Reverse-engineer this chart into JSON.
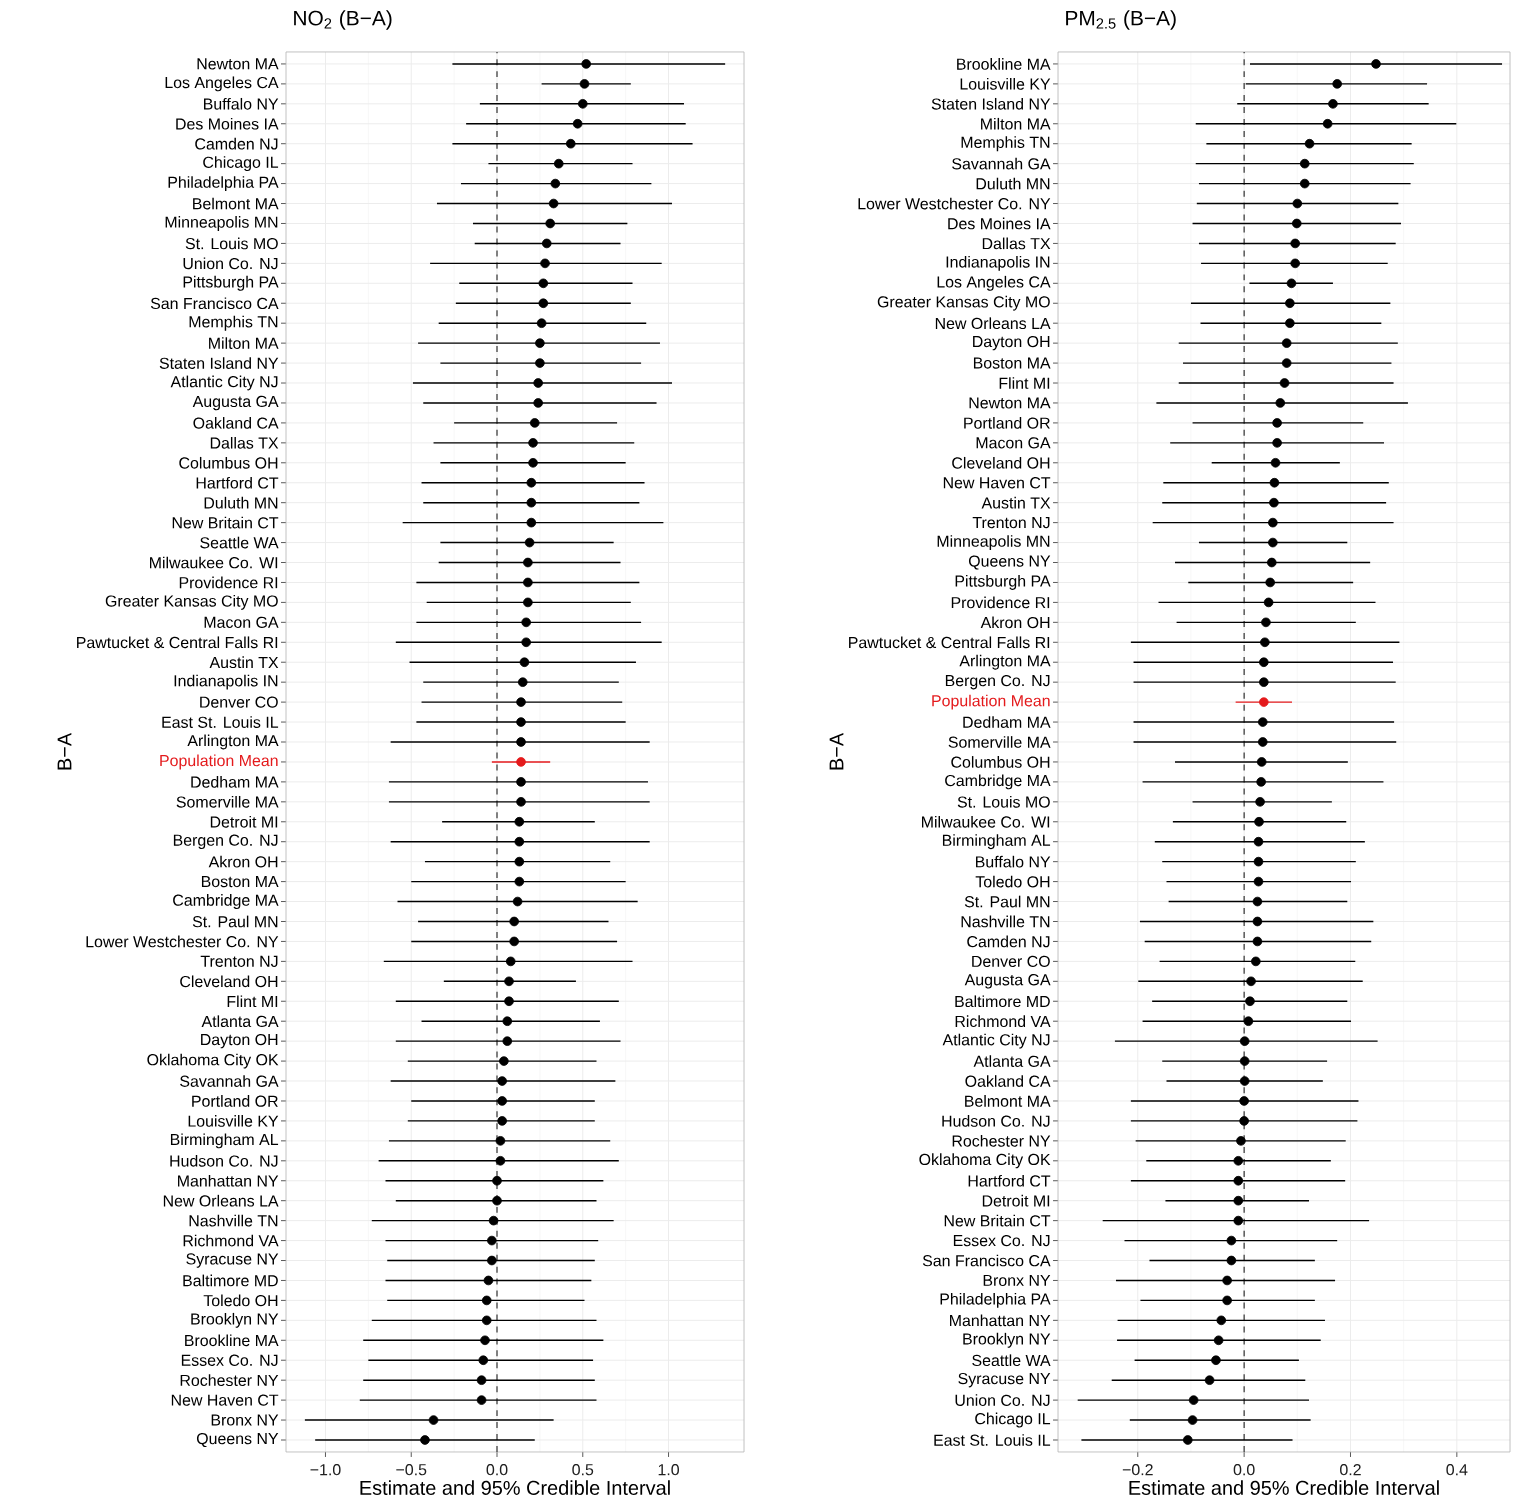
{
  "chart_data": [
    {
      "type": "scatter",
      "orientation": "horizontal",
      "title": "NO$_{2}$ (B−A)",
      "xlabel": "Estimate and 95% Credible Interval",
      "ylabel": "B−A",
      "marker": "circle",
      "grid": true,
      "xlim": [
        -1.23,
        1.44
      ],
      "xticks": [
        {
          "value": -1,
          "label": "−1.0"
        },
        {
          "value": -0.5,
          "label": "−0.5"
        },
        {
          "value": 0,
          "label": "0.0"
        },
        {
          "value": 0.5,
          "label": "0.5"
        },
        {
          "value": 1,
          "label": "1.0"
        }
      ],
      "ref_lines": [
        {
          "axis": "x",
          "value": 0,
          "color": "#333333",
          "line_style": "dashed"
        }
      ],
      "categories": [
        "Newton MA",
        "Los Angeles CA",
        "Buffalo NY",
        "Des Moines IA",
        "Camden NJ",
        "Chicago IL",
        "Philadelphia PA",
        "Belmont MA",
        "Minneapolis MN",
        "St. Louis MO",
        "Union Co. NJ",
        "Pittsburgh PA",
        "San Francisco CA",
        "Memphis TN",
        "Milton MA",
        "Staten Island NY",
        "Atlantic City NJ",
        "Augusta GA",
        "Oakland CA",
        "Dallas TX",
        "Columbus OH",
        "Hartford CT",
        "Duluth MN",
        "New Britain CT",
        "Seattle WA",
        "Milwaukee Co. WI",
        "Providence RI",
        "Greater Kansas City MO",
        "Macon GA",
        "Pawtucket & Central Falls RI",
        "Austin TX",
        "Indianapolis IN",
        "Denver CO",
        "East St. Louis IL",
        "Arlington MA",
        "Population Mean",
        "Dedham MA",
        "Somerville MA",
        "Detroit MI",
        "Bergen Co. NJ",
        "Akron OH",
        "Boston MA",
        "Cambridge MA",
        "St. Paul MN",
        "Lower Westchester Co. NY",
        "Trenton NJ",
        "Cleveland OH",
        "Flint MI",
        "Atlanta GA",
        "Dayton OH",
        "Oklahoma City OK",
        "Savannah GA",
        "Portland OR",
        "Louisville KY",
        "Birmingham AL",
        "Hudson Co. NJ",
        "Manhattan NY",
        "New Orleans LA",
        "Nashville TN",
        "Richmond VA",
        "Syracuse NY",
        "Baltimore MD",
        "Toledo OH",
        "Brooklyn NY",
        "Brookline MA",
        "Essex Co. NJ",
        "Rochester NY",
        "New Haven CT",
        "Bronx NY",
        "Queens NY"
      ],
      "values": [
        0.52,
        0.51,
        0.5,
        0.47,
        0.43,
        0.36,
        0.34,
        0.33,
        0.31,
        0.29,
        0.28,
        0.27,
        0.27,
        0.26,
        0.25,
        0.25,
        0.24,
        0.24,
        0.22,
        0.21,
        0.21,
        0.2,
        0.2,
        0.2,
        0.19,
        0.18,
        0.18,
        0.18,
        0.17,
        0.17,
        0.16,
        0.15,
        0.14,
        0.14,
        0.14,
        0.14,
        0.14,
        0.14,
        0.13,
        0.13,
        0.13,
        0.13,
        0.12,
        0.1,
        0.1,
        0.08,
        0.07,
        0.07,
        0.06,
        0.06,
        0.04,
        0.03,
        0.03,
        0.03,
        0.02,
        0.02,
        0.0,
        0.0,
        -0.02,
        -0.03,
        -0.03,
        -0.05,
        -0.06,
        -0.06,
        -0.07,
        -0.08,
        -0.09,
        -0.09,
        -0.37,
        -0.42
      ],
      "errors": [
        [
          -0.26,
          1.33
        ],
        [
          0.26,
          0.78
        ],
        [
          -0.1,
          1.09
        ],
        [
          -0.18,
          1.1
        ],
        [
          -0.26,
          1.14
        ],
        [
          -0.05,
          0.79
        ],
        [
          -0.21,
          0.9
        ],
        [
          -0.35,
          1.02
        ],
        [
          -0.14,
          0.76
        ],
        [
          -0.13,
          0.72
        ],
        [
          -0.39,
          0.96
        ],
        [
          -0.22,
          0.79
        ],
        [
          -0.24,
          0.78
        ],
        [
          -0.34,
          0.87
        ],
        [
          -0.46,
          0.95
        ],
        [
          -0.33,
          0.84
        ],
        [
          -0.49,
          1.02
        ],
        [
          -0.43,
          0.93
        ],
        [
          -0.25,
          0.7
        ],
        [
          -0.37,
          0.8
        ],
        [
          -0.33,
          0.75
        ],
        [
          -0.44,
          0.86
        ],
        [
          -0.43,
          0.83
        ],
        [
          -0.55,
          0.97
        ],
        [
          -0.33,
          0.68
        ],
        [
          -0.34,
          0.72
        ],
        [
          -0.47,
          0.83
        ],
        [
          -0.41,
          0.78
        ],
        [
          -0.47,
          0.84
        ],
        [
          -0.59,
          0.96
        ],
        [
          -0.51,
          0.81
        ],
        [
          -0.43,
          0.71
        ],
        [
          -0.44,
          0.73
        ],
        [
          -0.47,
          0.75
        ],
        [
          -0.62,
          0.89
        ],
        [
          -0.03,
          0.31
        ],
        [
          -0.63,
          0.88
        ],
        [
          -0.63,
          0.89
        ],
        [
          -0.32,
          0.57
        ],
        [
          -0.62,
          0.89
        ],
        [
          -0.42,
          0.66
        ],
        [
          -0.5,
          0.75
        ],
        [
          -0.58,
          0.82
        ],
        [
          -0.46,
          0.65
        ],
        [
          -0.5,
          0.7
        ],
        [
          -0.66,
          0.79
        ],
        [
          -0.31,
          0.46
        ],
        [
          -0.59,
          0.71
        ],
        [
          -0.44,
          0.6
        ],
        [
          -0.59,
          0.72
        ],
        [
          -0.52,
          0.58
        ],
        [
          -0.62,
          0.69
        ],
        [
          -0.5,
          0.57
        ],
        [
          -0.52,
          0.57
        ],
        [
          -0.63,
          0.66
        ],
        [
          -0.69,
          0.71
        ],
        [
          -0.65,
          0.62
        ],
        [
          -0.59,
          0.58
        ],
        [
          -0.73,
          0.68
        ],
        [
          -0.65,
          0.59
        ],
        [
          -0.64,
          0.57
        ],
        [
          -0.65,
          0.55
        ],
        [
          -0.64,
          0.51
        ],
        [
          -0.73,
          0.58
        ],
        [
          -0.78,
          0.62
        ],
        [
          -0.75,
          0.56
        ],
        [
          -0.78,
          0.57
        ],
        [
          -0.8,
          0.58
        ],
        [
          -1.12,
          0.33
        ],
        [
          -1.06,
          0.22
        ]
      ],
      "colors": [
        "#000000",
        "#000000",
        "#000000",
        "#000000",
        "#000000",
        "#000000",
        "#000000",
        "#000000",
        "#000000",
        "#000000",
        "#000000",
        "#000000",
        "#000000",
        "#000000",
        "#000000",
        "#000000",
        "#000000",
        "#000000",
        "#000000",
        "#000000",
        "#000000",
        "#000000",
        "#000000",
        "#000000",
        "#000000",
        "#000000",
        "#000000",
        "#000000",
        "#000000",
        "#000000",
        "#000000",
        "#000000",
        "#000000",
        "#000000",
        "#000000",
        "#e41a1c",
        "#000000",
        "#000000",
        "#000000",
        "#000000",
        "#000000",
        "#000000",
        "#000000",
        "#000000",
        "#000000",
        "#000000",
        "#000000",
        "#000000",
        "#000000",
        "#000000",
        "#000000",
        "#000000",
        "#000000",
        "#000000",
        "#000000",
        "#000000",
        "#000000",
        "#000000",
        "#000000",
        "#000000",
        "#000000",
        "#000000",
        "#000000",
        "#000000",
        "#000000",
        "#000000",
        "#000000",
        "#000000",
        "#000000",
        "#000000"
      ]
    },
    {
      "type": "scatter",
      "orientation": "horizontal",
      "title": "PM$_{2.5}$ (B−A)",
      "xlabel": "Estimate and 95% Credible Interval",
      "ylabel": "B−A",
      "marker": "circle",
      "grid": true,
      "xlim": [
        -0.35,
        0.5
      ],
      "xticks": [
        {
          "value": -0.2,
          "label": "−0.2"
        },
        {
          "value": 0,
          "label": "0.0"
        },
        {
          "value": 0.2,
          "label": "0.2"
        },
        {
          "value": 0.4,
          "label": "0.4"
        }
      ],
      "ref_lines": [
        {
          "axis": "x",
          "value": 0,
          "color": "#333333",
          "line_style": "dashed"
        }
      ],
      "categories": [
        "Brookline MA",
        "Louisville KY",
        "Staten Island NY",
        "Milton MA",
        "Memphis TN",
        "Savannah GA",
        "Duluth MN",
        "Lower Westchester Co. NY",
        "Des Moines IA",
        "Dallas TX",
        "Indianapolis IN",
        "Los Angeles CA",
        "Greater Kansas City MO",
        "New Orleans LA",
        "Dayton OH",
        "Boston MA",
        "Flint MI",
        "Newton MA",
        "Portland OR",
        "Macon GA",
        "Cleveland OH",
        "New Haven CT",
        "Austin TX",
        "Trenton NJ",
        "Minneapolis MN",
        "Queens NY",
        "Pittsburgh PA",
        "Providence RI",
        "Akron OH",
        "Pawtucket & Central Falls RI",
        "Arlington MA",
        "Bergen Co. NJ",
        "Population Mean",
        "Dedham MA",
        "Somerville MA",
        "Columbus OH",
        "Cambridge MA",
        "St. Louis MO",
        "Milwaukee Co. WI",
        "Birmingham AL",
        "Buffalo NY",
        "Toledo OH",
        "St. Paul MN",
        "Nashville TN",
        "Camden NJ",
        "Denver CO",
        "Augusta GA",
        "Baltimore MD",
        "Richmond VA",
        "Atlantic City NJ",
        "Atlanta GA",
        "Oakland CA",
        "Belmont MA",
        "Hudson Co. NJ",
        "Rochester NY",
        "Oklahoma City OK",
        "Hartford CT",
        "Detroit MI",
        "New Britain CT",
        "Essex Co. NJ",
        "San Francisco CA",
        "Bronx NY",
        "Philadelphia PA",
        "Manhattan NY",
        "Brooklyn NY",
        "Seattle WA",
        "Syracuse NY",
        "Union Co. NJ",
        "Chicago IL",
        "East St. Louis IL"
      ],
      "values": [
        0.248,
        0.175,
        0.167,
        0.157,
        0.123,
        0.114,
        0.114,
        0.1,
        0.099,
        0.096,
        0.096,
        0.089,
        0.086,
        0.086,
        0.08,
        0.08,
        0.076,
        0.068,
        0.062,
        0.062,
        0.059,
        0.057,
        0.056,
        0.054,
        0.054,
        0.052,
        0.049,
        0.046,
        0.041,
        0.039,
        0.037,
        0.037,
        0.037,
        0.035,
        0.035,
        0.033,
        0.032,
        0.03,
        0.028,
        0.027,
        0.027,
        0.027,
        0.025,
        0.025,
        0.025,
        0.022,
        0.013,
        0.011,
        0.008,
        0.001,
        0.001,
        0.001,
        0.0,
        0.0,
        -0.006,
        -0.011,
        -0.011,
        -0.011,
        -0.011,
        -0.024,
        -0.024,
        -0.032,
        -0.032,
        -0.043,
        -0.048,
        -0.053,
        -0.065,
        -0.095,
        -0.097,
        -0.106
      ],
      "errors": [
        [
          0.011,
          0.485
        ],
        [
          0.003,
          0.344
        ],
        [
          -0.013,
          0.347
        ],
        [
          -0.091,
          0.399
        ],
        [
          -0.071,
          0.315
        ],
        [
          -0.091,
          0.319
        ],
        [
          -0.085,
          0.313
        ],
        [
          -0.089,
          0.29
        ],
        [
          -0.097,
          0.295
        ],
        [
          -0.085,
          0.285
        ],
        [
          -0.081,
          0.27
        ],
        [
          0.01,
          0.167
        ],
        [
          -0.1,
          0.275
        ],
        [
          -0.082,
          0.258
        ],
        [
          -0.123,
          0.289
        ],
        [
          -0.115,
          0.277
        ],
        [
          -0.123,
          0.281
        ],
        [
          -0.165,
          0.308
        ],
        [
          -0.097,
          0.224
        ],
        [
          -0.139,
          0.263
        ],
        [
          -0.061,
          0.18
        ],
        [
          -0.152,
          0.272
        ],
        [
          -0.154,
          0.267
        ],
        [
          -0.172,
          0.281
        ],
        [
          -0.085,
          0.194
        ],
        [
          -0.13,
          0.237
        ],
        [
          -0.105,
          0.205
        ],
        [
          -0.161,
          0.247
        ],
        [
          -0.127,
          0.21
        ],
        [
          -0.213,
          0.292
        ],
        [
          -0.208,
          0.28
        ],
        [
          -0.208,
          0.285
        ],
        [
          -0.016,
          0.09
        ],
        [
          -0.208,
          0.282
        ],
        [
          -0.208,
          0.286
        ],
        [
          -0.13,
          0.195
        ],
        [
          -0.191,
          0.262
        ],
        [
          -0.097,
          0.165
        ],
        [
          -0.134,
          0.192
        ],
        [
          -0.168,
          0.227
        ],
        [
          -0.154,
          0.21
        ],
        [
          -0.146,
          0.201
        ],
        [
          -0.142,
          0.194
        ],
        [
          -0.196,
          0.243
        ],
        [
          -0.187,
          0.239
        ],
        [
          -0.159,
          0.209
        ],
        [
          -0.199,
          0.223
        ],
        [
          -0.173,
          0.194
        ],
        [
          -0.191,
          0.201
        ],
        [
          -0.243,
          0.251
        ],
        [
          -0.154,
          0.156
        ],
        [
          -0.146,
          0.148
        ],
        [
          -0.213,
          0.215
        ],
        [
          -0.213,
          0.213
        ],
        [
          -0.204,
          0.191
        ],
        [
          -0.184,
          0.163
        ],
        [
          -0.213,
          0.19
        ],
        [
          -0.148,
          0.122
        ],
        [
          -0.266,
          0.235
        ],
        [
          -0.225,
          0.175
        ],
        [
          -0.178,
          0.133
        ],
        [
          -0.241,
          0.171
        ],
        [
          -0.195,
          0.133
        ],
        [
          -0.238,
          0.152
        ],
        [
          -0.239,
          0.144
        ],
        [
          -0.206,
          0.103
        ],
        [
          -0.249,
          0.115
        ],
        [
          -0.313,
          0.122
        ],
        [
          -0.215,
          0.125
        ],
        [
          -0.306,
          0.091
        ]
      ],
      "colors": [
        "#000000",
        "#000000",
        "#000000",
        "#000000",
        "#000000",
        "#000000",
        "#000000",
        "#000000",
        "#000000",
        "#000000",
        "#000000",
        "#000000",
        "#000000",
        "#000000",
        "#000000",
        "#000000",
        "#000000",
        "#000000",
        "#000000",
        "#000000",
        "#000000",
        "#000000",
        "#000000",
        "#000000",
        "#000000",
        "#000000",
        "#000000",
        "#000000",
        "#000000",
        "#000000",
        "#000000",
        "#000000",
        "#e41a1c",
        "#000000",
        "#000000",
        "#000000",
        "#000000",
        "#000000",
        "#000000",
        "#000000",
        "#000000",
        "#000000",
        "#000000",
        "#000000",
        "#000000",
        "#000000",
        "#000000",
        "#000000",
        "#000000",
        "#000000",
        "#000000",
        "#000000",
        "#000000",
        "#000000",
        "#000000",
        "#000000",
        "#000000",
        "#000000",
        "#000000",
        "#000000",
        "#000000",
        "#000000",
        "#000000",
        "#000000",
        "#000000",
        "#000000",
        "#000000",
        "#000000",
        "#000000",
        "#000000"
      ]
    }
  ]
}
